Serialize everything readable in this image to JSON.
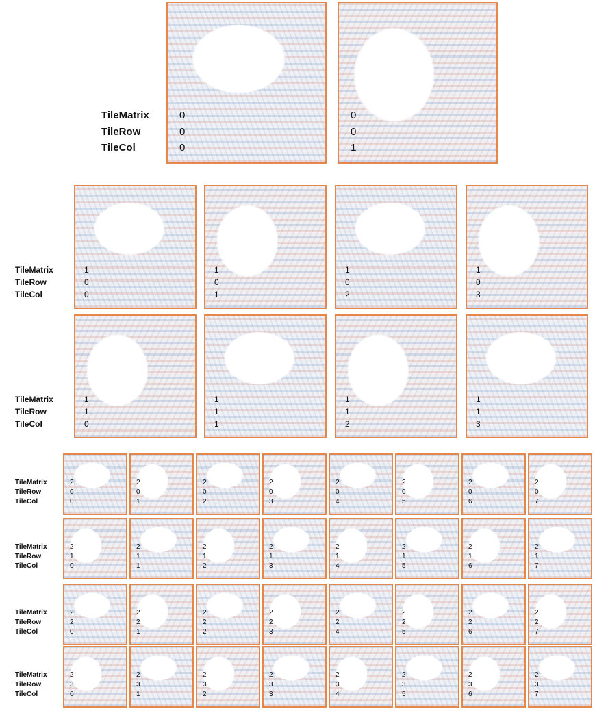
{
  "levels": [
    {
      "rows": [
        {
          "labels": [
            "TileMatrix",
            "TileRow",
            "TileCol"
          ],
          "tiles": [
            [
              0,
              0,
              0
            ],
            [
              0,
              0,
              1
            ]
          ]
        }
      ]
    },
    {
      "rows": [
        {
          "labels": [
            "TileMatrix",
            "TileRow",
            "TileCol"
          ],
          "tiles": [
            [
              1,
              0,
              0
            ],
            [
              1,
              0,
              1
            ],
            [
              1,
              0,
              2
            ],
            [
              1,
              0,
              3
            ]
          ]
        },
        {
          "labels": [
            "TileMatrix",
            "TileRow",
            "TileCol"
          ],
          "tiles": [
            [
              1,
              1,
              0
            ],
            [
              1,
              1,
              1
            ],
            [
              1,
              1,
              2
            ],
            [
              1,
              1,
              3
            ]
          ]
        }
      ]
    },
    {
      "rows": [
        {
          "labels": [
            "TileMatrix",
            "TileRow",
            "TileCol"
          ],
          "tiles": [
            [
              2,
              0,
              0
            ],
            [
              2,
              0,
              1
            ],
            [
              2,
              0,
              2
            ],
            [
              2,
              0,
              3
            ],
            [
              2,
              0,
              4
            ],
            [
              2,
              0,
              5
            ],
            [
              2,
              0,
              6
            ],
            [
              2,
              0,
              7
            ]
          ]
        },
        {
          "labels": [
            "TileMatrix",
            "TileRow",
            "TileCol"
          ],
          "tiles": [
            [
              2,
              1,
              0
            ],
            [
              2,
              1,
              1
            ],
            [
              2,
              1,
              2
            ],
            [
              2,
              1,
              3
            ],
            [
              2,
              1,
              4
            ],
            [
              2,
              1,
              5
            ],
            [
              2,
              1,
              6
            ],
            [
              2,
              1,
              7
            ]
          ]
        },
        {
          "labels": [
            "TileMatrix",
            "TileRow",
            "TileCol"
          ],
          "tiles": [
            [
              2,
              2,
              0
            ],
            [
              2,
              2,
              1
            ],
            [
              2,
              2,
              2
            ],
            [
              2,
              2,
              3
            ],
            [
              2,
              2,
              4
            ],
            [
              2,
              2,
              5
            ],
            [
              2,
              2,
              6
            ],
            [
              2,
              2,
              7
            ]
          ]
        },
        {
          "labels": [
            "TileMatrix",
            "TileRow",
            "TileCol"
          ],
          "tiles": [
            [
              2,
              3,
              0
            ],
            [
              2,
              3,
              1
            ],
            [
              2,
              3,
              2
            ],
            [
              2,
              3,
              3
            ],
            [
              2,
              3,
              4
            ],
            [
              2,
              3,
              5
            ],
            [
              2,
              3,
              6
            ],
            [
              2,
              3,
              7
            ]
          ]
        }
      ]
    }
  ]
}
